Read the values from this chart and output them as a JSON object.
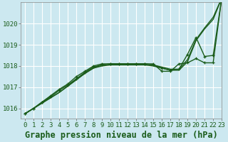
{
  "title": "Graphe pression niveau de la mer (hPa)",
  "background_color": "#cce8f0",
  "plot_bg_color": "#cce8f0",
  "grid_color": "#ffffff",
  "line_color": "#1a5c1a",
  "xlim": [
    -0.5,
    23
  ],
  "ylim": [
    1015.5,
    1021.0
  ],
  "yticks": [
    1016,
    1017,
    1018,
    1019,
    1020
  ],
  "xticks": [
    0,
    1,
    2,
    3,
    4,
    5,
    6,
    7,
    8,
    9,
    10,
    11,
    12,
    13,
    14,
    15,
    16,
    17,
    18,
    19,
    20,
    21,
    22,
    23
  ],
  "series": [
    {
      "y": [
        1015.75,
        1016.0,
        1016.25,
        1016.5,
        1016.75,
        1017.05,
        1017.35,
        1017.65,
        1017.9,
        1018.05,
        1018.1,
        1018.1,
        1018.1,
        1018.1,
        1018.1,
        1018.05,
        1017.95,
        1017.85,
        1017.85,
        1018.3,
        1019.25,
        1019.8,
        1020.3,
        1021.2
      ],
      "marker": false,
      "lw": 1.0
    },
    {
      "y": [
        1015.75,
        1016.0,
        1016.3,
        1016.55,
        1016.85,
        1017.1,
        1017.4,
        1017.7,
        1017.95,
        1018.05,
        1018.1,
        1018.1,
        1018.1,
        1018.1,
        1018.1,
        1018.05,
        1017.9,
        1017.8,
        1017.85,
        1018.55,
        1019.35,
        1018.45,
        1018.5,
        1021.2
      ],
      "marker": true,
      "lw": 1.0
    },
    {
      "y": [
        1015.75,
        1016.0,
        1016.3,
        1016.6,
        1016.9,
        1017.15,
        1017.5,
        1017.75,
        1018.0,
        1018.1,
        1018.1,
        1018.1,
        1018.1,
        1018.1,
        1018.1,
        1018.1,
        1017.75,
        1017.75,
        1018.1,
        1018.15,
        1018.35,
        1018.15,
        1018.15,
        1021.2
      ],
      "marker": true,
      "lw": 1.0
    },
    {
      "y": [
        1015.75,
        1016.0,
        1016.25,
        1016.5,
        1016.75,
        1017.05,
        1017.35,
        1017.65,
        1017.9,
        1018.0,
        1018.05,
        1018.05,
        1018.05,
        1018.05,
        1018.05,
        1018.0,
        1017.9,
        1017.8,
        1017.8,
        1018.2,
        1019.2,
        1019.75,
        1020.2,
        1021.2
      ],
      "marker": false,
      "lw": 1.0
    }
  ],
  "title_fontsize": 8.5,
  "tick_fontsize": 6.5
}
